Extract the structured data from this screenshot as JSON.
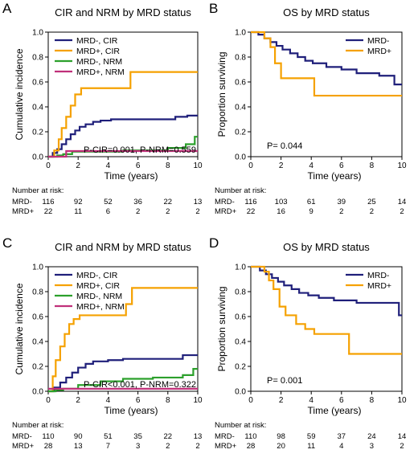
{
  "chart_data": [
    {
      "panel": "A",
      "type": "line",
      "step": true,
      "title": "CIR and NRM by MRD status",
      "xlabel": "Time (years)",
      "ylabel": "Cumulative incidence",
      "xlim": [
        0,
        10
      ],
      "ylim": [
        0,
        1.0
      ],
      "xticks": [
        "0",
        "2",
        "4",
        "6",
        "8",
        "10"
      ],
      "yticks": [
        "0.0",
        "0.2",
        "0.4",
        "0.6",
        "0.8",
        "1.0"
      ],
      "legend_position": "top-left",
      "series": [
        {
          "name": "MRD-, CIR",
          "color": "#1f1f7a",
          "x": [
            0,
            0.3,
            0.6,
            0.9,
            1.2,
            1.5,
            1.8,
            2.1,
            2.5,
            3.0,
            3.5,
            4.2,
            5.5,
            8.5,
            9.3,
            10
          ],
          "y": [
            0,
            0.03,
            0.06,
            0.1,
            0.14,
            0.18,
            0.21,
            0.24,
            0.26,
            0.28,
            0.29,
            0.3,
            0.3,
            0.32,
            0.33,
            0.33
          ]
        },
        {
          "name": "MRD+, CIR",
          "color": "#f5a100",
          "x": [
            0,
            0.4,
            0.7,
            0.9,
            1.2,
            1.5,
            1.8,
            2.2,
            5.5,
            10
          ],
          "y": [
            0,
            0.05,
            0.14,
            0.23,
            0.32,
            0.41,
            0.5,
            0.55,
            0.68,
            0.68
          ]
        },
        {
          "name": "MRD-, NRM",
          "color": "#2ca02c",
          "x": [
            0,
            0.6,
            1.0,
            1.6,
            5.0,
            8.0,
            9.2,
            9.8,
            10
          ],
          "y": [
            0,
            0.01,
            0.02,
            0.04,
            0.05,
            0.07,
            0.1,
            0.16,
            0.16
          ]
        },
        {
          "name": "MRD+, NRM",
          "color": "#c0307a",
          "x": [
            0,
            1.2,
            10
          ],
          "y": [
            0,
            0.045,
            0.045
          ]
        }
      ],
      "annotation": "P-CIR=0.001, P-NRM=0.559",
      "risk_table": {
        "header": "Number at risk:",
        "rows": [
          {
            "label": "MRD-",
            "values": [
              "116",
              "92",
              "52",
              "36",
              "22",
              "13"
            ]
          },
          {
            "label": "MRD+",
            "values": [
              "22",
              "11",
              "6",
              "2",
              "2",
              "2"
            ]
          }
        ]
      }
    },
    {
      "panel": "B",
      "type": "line",
      "step": true,
      "title": "OS by MRD status",
      "xlabel": "Time (years)",
      "ylabel": "Proportion surviving",
      "xlim": [
        0,
        10
      ],
      "ylim": [
        0,
        1.0
      ],
      "xticks": [
        "0",
        "2",
        "4",
        "6",
        "8",
        "10"
      ],
      "yticks": [
        "0.0",
        "0.2",
        "0.4",
        "0.6",
        "0.8",
        "1.0"
      ],
      "legend_position": "top-right",
      "series": [
        {
          "name": "MRD-",
          "color": "#1f1f7a",
          "x": [
            0,
            0.5,
            0.9,
            1.3,
            1.7,
            2.1,
            2.6,
            3.1,
            3.6,
            4.1,
            5.0,
            6.0,
            7.0,
            8.5,
            9.5,
            10
          ],
          "y": [
            1.0,
            0.98,
            0.95,
            0.92,
            0.89,
            0.86,
            0.83,
            0.8,
            0.77,
            0.75,
            0.72,
            0.7,
            0.67,
            0.65,
            0.58,
            0.58
          ]
        },
        {
          "name": "MRD+",
          "color": "#f5a100",
          "x": [
            0,
            0.9,
            1.3,
            1.6,
            2.0,
            4.2,
            10
          ],
          "y": [
            1.0,
            0.95,
            0.88,
            0.75,
            0.63,
            0.49,
            0.49
          ]
        }
      ],
      "annotation": "P= 0.044",
      "risk_table": {
        "header": "Number at risk:",
        "rows": [
          {
            "label": "MRD-",
            "values": [
              "116",
              "103",
              "61",
              "39",
              "25",
              "14"
            ]
          },
          {
            "label": "MRD+",
            "values": [
              "22",
              "16",
              "9",
              "2",
              "2",
              "2"
            ]
          }
        ]
      }
    },
    {
      "panel": "C",
      "type": "line",
      "step": true,
      "title": "CIR and NRM by MRD status",
      "xlabel": "Time (years)",
      "ylabel": "Cumulative incidence",
      "xlim": [
        0,
        10
      ],
      "ylim": [
        0,
        1.0
      ],
      "xticks": [
        "0",
        "2",
        "4",
        "6",
        "8",
        "10"
      ],
      "yticks": [
        "0.0",
        "0.2",
        "0.4",
        "0.6",
        "0.8",
        "1.0"
      ],
      "legend_position": "top-left",
      "series": [
        {
          "name": "MRD-, CIR",
          "color": "#1f1f7a",
          "x": [
            0,
            0.4,
            0.8,
            1.2,
            1.6,
            2.0,
            2.5,
            3.0,
            4.0,
            5.0,
            9.0,
            10
          ],
          "y": [
            0,
            0.03,
            0.07,
            0.11,
            0.15,
            0.19,
            0.22,
            0.24,
            0.25,
            0.26,
            0.29,
            0.29
          ]
        },
        {
          "name": "MRD+, CIR",
          "color": "#f5a100",
          "x": [
            0,
            0.3,
            0.5,
            0.8,
            1.1,
            1.4,
            1.7,
            2.1,
            5.2,
            5.6,
            10
          ],
          "y": [
            0,
            0.12,
            0.25,
            0.36,
            0.46,
            0.54,
            0.58,
            0.61,
            0.7,
            0.83,
            0.83
          ]
        },
        {
          "name": "MRD-, NRM",
          "color": "#2ca02c",
          "x": [
            0,
            0.5,
            1.0,
            2.0,
            3.5,
            5.0,
            7.0,
            9.0,
            9.7,
            10
          ],
          "y": [
            0,
            0.01,
            0.02,
            0.05,
            0.08,
            0.1,
            0.11,
            0.13,
            0.18,
            0.18
          ]
        },
        {
          "name": "MRD+, NRM",
          "color": "#c0307a",
          "x": [
            0,
            10
          ],
          "y": [
            0.02,
            0.02
          ]
        }
      ],
      "annotation": "P-CIR<0.001, P-NRM=0.322",
      "risk_table": {
        "header": "Number at risk:",
        "rows": [
          {
            "label": "MRD-",
            "values": [
              "110",
              "90",
              "51",
              "35",
              "22",
              "13"
            ]
          },
          {
            "label": "MRD+",
            "values": [
              "28",
              "13",
              "7",
              "3",
              "2",
              "2"
            ]
          }
        ]
      }
    },
    {
      "panel": "D",
      "type": "line",
      "step": true,
      "title": "OS by MRD status",
      "xlabel": "Time (years)",
      "ylabel": "Proportion surviving",
      "xlim": [
        0,
        10
      ],
      "ylim": [
        0,
        1.0
      ],
      "xticks": [
        "0",
        "2",
        "4",
        "6",
        "8",
        "10"
      ],
      "yticks": [
        "0.0",
        "0.2",
        "0.4",
        "0.6",
        "0.8",
        "1.0"
      ],
      "legend_position": "top-right",
      "series": [
        {
          "name": "MRD-",
          "color": "#1f1f7a",
          "x": [
            0,
            0.6,
            1.0,
            1.4,
            1.8,
            2.2,
            2.7,
            3.2,
            3.8,
            4.5,
            5.5,
            7.0,
            8.5,
            9.8,
            10
          ],
          "y": [
            1.0,
            0.97,
            0.94,
            0.91,
            0.88,
            0.85,
            0.82,
            0.79,
            0.77,
            0.75,
            0.73,
            0.71,
            0.71,
            0.61,
            0.61
          ]
        },
        {
          "name": "MRD+",
          "color": "#f5a100",
          "x": [
            0,
            0.9,
            1.2,
            1.5,
            1.9,
            2.3,
            3.0,
            3.6,
            4.2,
            6.5,
            10
          ],
          "y": [
            1.0,
            0.96,
            0.89,
            0.82,
            0.68,
            0.61,
            0.54,
            0.5,
            0.46,
            0.3,
            0.3
          ]
        }
      ],
      "annotation": "P= 0.001",
      "risk_table": {
        "header": "Number at risk:",
        "rows": [
          {
            "label": "MRD-",
            "values": [
              "110",
              "98",
              "59",
              "37",
              "24",
              "14"
            ]
          },
          {
            "label": "MRD+",
            "values": [
              "28",
              "20",
              "11",
              "4",
              "3",
              "2"
            ]
          }
        ]
      }
    }
  ]
}
